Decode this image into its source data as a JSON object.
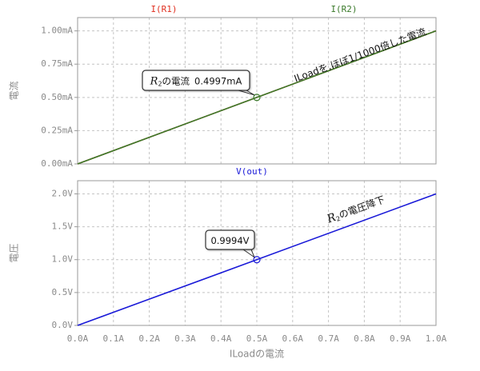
{
  "chart_data": [
    {
      "type": "line",
      "x": [
        0,
        1
      ],
      "xlim": [
        0,
        1
      ],
      "xticks": [
        0,
        0.1,
        0.2,
        0.3,
        0.4,
        0.5,
        0.6,
        0.7,
        0.8,
        0.9,
        1
      ],
      "xtick_labels": false,
      "ylim": [
        0,
        1.1
      ],
      "yticks": [
        {
          "value": 0,
          "label": "0.00mA"
        },
        {
          "value": 0.25,
          "label": "0.25mA"
        },
        {
          "value": 0.5,
          "label": "0.50mA"
        },
        {
          "value": 0.75,
          "label": "0.75mA"
        },
        {
          "value": 1,
          "label": "1.00mA"
        }
      ],
      "ylabel": "電流",
      "grid": true,
      "series": [
        {
          "name": "I(R1)",
          "color": "#e03020",
          "values": [
            0,
            1
          ]
        },
        {
          "name": "I(R2)",
          "color": "#3a7a2a",
          "values": [
            0,
            1
          ]
        }
      ],
      "marker": {
        "x": 0.5,
        "y": 0.4997,
        "symbol": "R",
        "subscript": "2",
        "text": "の電流",
        "value_label": "0.4997mA"
      },
      "annotation": "ILoadを,ほぼ1/1000倍した電流"
    },
    {
      "type": "line",
      "x": [
        0,
        1
      ],
      "xlim": [
        0,
        1
      ],
      "xticks": [
        {
          "value": 0,
          "label": "0.0A"
        },
        {
          "value": 0.1,
          "label": "0.1A"
        },
        {
          "value": 0.2,
          "label": "0.2A"
        },
        {
          "value": 0.3,
          "label": "0.3A"
        },
        {
          "value": 0.4,
          "label": "0.4A"
        },
        {
          "value": 0.5,
          "label": "0.5A"
        },
        {
          "value": 0.6,
          "label": "0.6A"
        },
        {
          "value": 0.7,
          "label": "0.7A"
        },
        {
          "value": 0.8,
          "label": "0.8A"
        },
        {
          "value": 0.9,
          "label": "0.9A"
        },
        {
          "value": 1,
          "label": "1.0A"
        }
      ],
      "xtick_labels": true,
      "xlabel": "ILoadの電流",
      "ylim": [
        0,
        2.2
      ],
      "yticks": [
        {
          "value": 0,
          "label": "0.0V"
        },
        {
          "value": 0.5,
          "label": "0.5V"
        },
        {
          "value": 1,
          "label": "1.0V"
        },
        {
          "value": 1.5,
          "label": "1.5V"
        },
        {
          "value": 2,
          "label": "2.0V"
        }
      ],
      "ylabel": "電圧",
      "grid": true,
      "series": [
        {
          "name": "V(out)",
          "color": "#1a1ad8",
          "values": [
            0,
            2
          ]
        }
      ],
      "marker": {
        "x": 0.5,
        "y": 0.9994,
        "value_label": "0.9994V"
      },
      "annotation": {
        "symbol": "R",
        "subscript": "2",
        "text": "の電圧降下"
      }
    }
  ]
}
